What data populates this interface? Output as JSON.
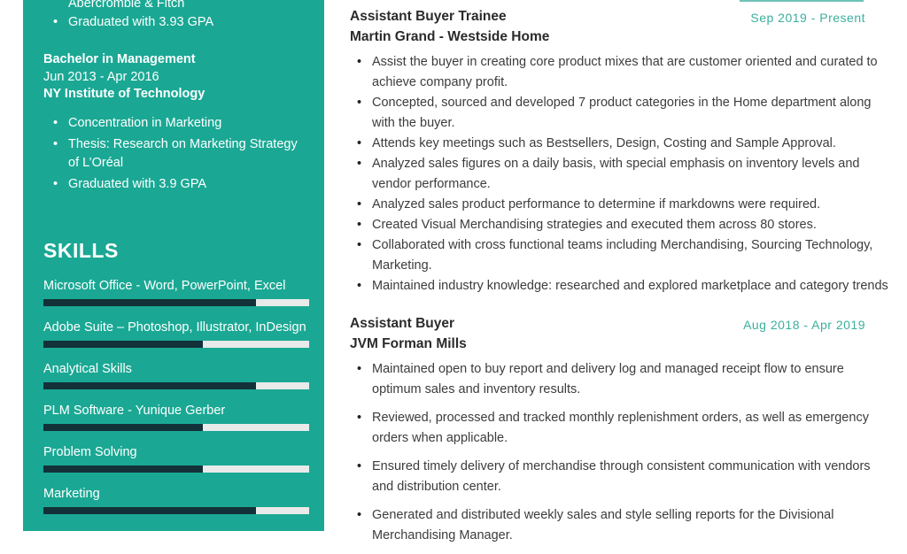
{
  "colors": {
    "accent": "#1AA894",
    "date_text": "#3BAF9E",
    "skill_bar_fill": "#133139",
    "skill_bar_track": "#E9EAEA",
    "body_text": "#3C3C3C"
  },
  "sidebar": {
    "education": {
      "wrapped_line": "Abercrombie & Fitch",
      "top_bullet": "Graduated with 3.93 GPA",
      "degree": "Bachelor in Management",
      "dates": "Jun 2013 - Apr 2016",
      "school": "NY Institute of Technology",
      "bullets": [
        "Concentration in Marketing",
        "Thesis: Research on Marketing Strategy of L’Oréal",
        "Graduated with 3.9 GPA"
      ]
    },
    "skills": {
      "heading": "SKILLS",
      "items": [
        {
          "label": "Microsoft Office - Word, PowerPoint, Excel",
          "level_percent": 80
        },
        {
          "label": "Adobe Suite – Photoshop, Illustrator, InDesign",
          "level_percent": 60
        },
        {
          "label": "Analytical Skills",
          "level_percent": 80
        },
        {
          "label": "PLM Software - Yunique Gerber",
          "level_percent": 60
        },
        {
          "label": "Problem Solving",
          "level_percent": 60
        },
        {
          "label": "Marketing",
          "level_percent": 80
        }
      ]
    }
  },
  "main": {
    "jobs": [
      {
        "title": "Assistant Buyer Trainee",
        "company": "Martin Grand - Westside Home",
        "dates": "Sep 2019 - Present",
        "bullets": [
          "Assist the buyer in creating core product mixes that are customer oriented and curated to achieve company profit.",
          "Concepted, sourced and developed 7 product categories in the Home department along with the buyer.",
          "Attends key meetings such as Bestsellers, Design, Costing and Sample Approval.",
          "Analyzed sales figures on a daily basis, with special emphasis on inventory levels and vendor performance.",
          "Analyzed sales product performance to determine if markdowns were required.",
          "Created Visual Merchandising strategies and executed them across 80 stores.",
          "Collaborated with cross functional teams including Merchandising, Sourcing Technology, Marketing.",
          "Maintained industry knowledge: researched and explored marketplace and category trends"
        ]
      },
      {
        "title": "Assistant Buyer",
        "company": "JVM Forman Mills",
        "dates": "Aug 2018 - Apr 2019",
        "bullets": [
          "Maintained open to buy report and delivery log and managed receipt flow to ensure optimum sales and inventory results.",
          "Reviewed, processed and tracked monthly replenishment orders, as well as emergency orders when applicable.",
          "Ensured timely delivery of merchandise through consistent communication with vendors and distribution center.",
          "Generated and distributed weekly sales and style selling reports for the Divisional Merchandising Manager."
        ]
      }
    ]
  }
}
